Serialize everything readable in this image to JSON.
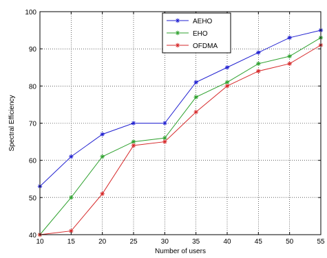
{
  "chart_data": {
    "type": "line",
    "title": "",
    "xlabel": "Number of users",
    "ylabel": "Spectral Efficiency",
    "x": [
      10,
      15,
      20,
      25,
      30,
      35,
      40,
      45,
      50,
      55
    ],
    "xlim": [
      10,
      55
    ],
    "ylim": [
      40,
      100
    ],
    "xticks": [
      10,
      15,
      20,
      25,
      30,
      35,
      40,
      45,
      50,
      55
    ],
    "yticks": [
      40,
      50,
      60,
      70,
      80,
      90,
      100
    ],
    "grid": true,
    "legend_position": "top-center",
    "series": [
      {
        "name": "AEHO",
        "color": "#1f1fd0",
        "values": [
          53,
          61,
          67,
          70,
          70,
          81,
          85,
          89,
          93,
          95
        ]
      },
      {
        "name": "EHO",
        "color": "#2ca02c",
        "values": [
          40,
          50,
          61,
          65,
          66,
          77,
          81,
          86,
          88,
          93
        ]
      },
      {
        "name": "OFDMA",
        "color": "#d62728",
        "values": [
          40,
          41,
          51,
          64,
          65,
          73,
          80,
          84,
          86,
          91
        ]
      }
    ]
  }
}
